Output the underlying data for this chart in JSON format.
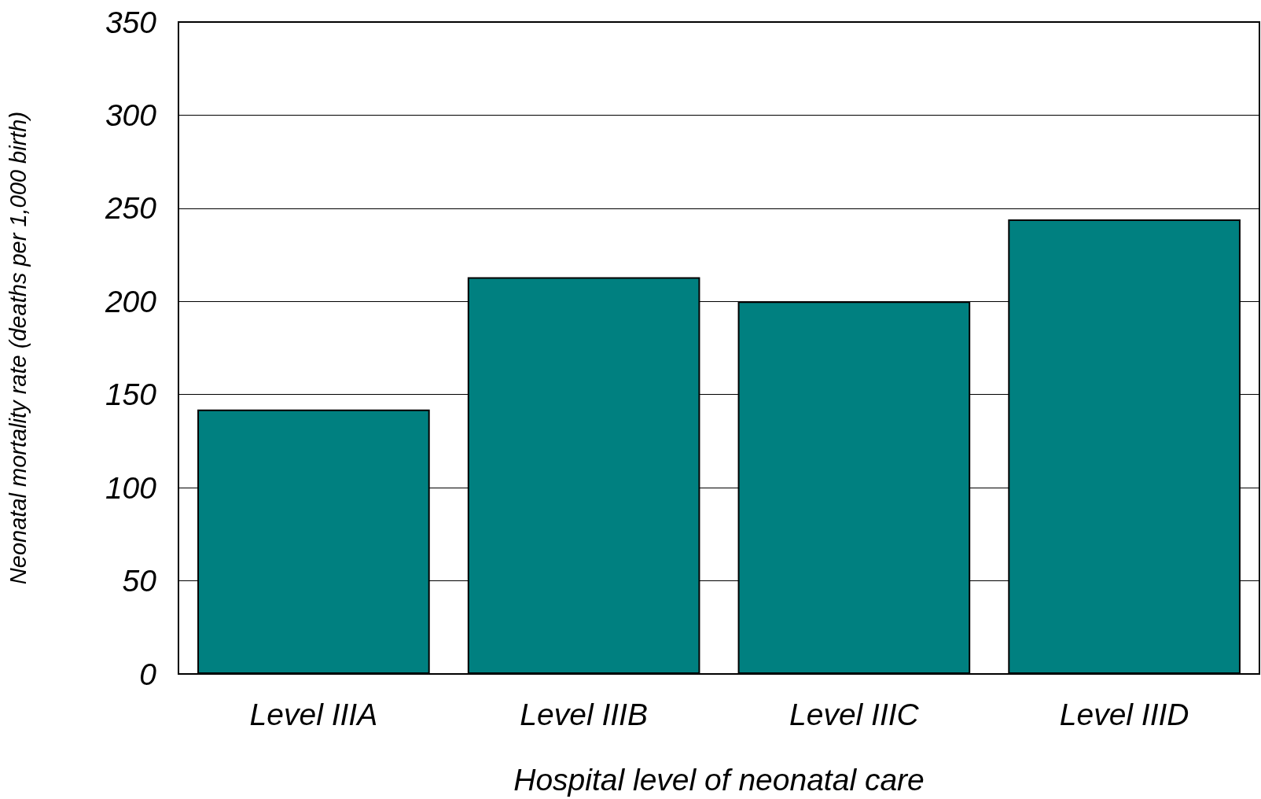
{
  "chart_data": {
    "type": "bar",
    "xlabel": "Hospital level of neonatal care",
    "ylabel": "Neonatal mortality rate (deaths per 1,000 birth)",
    "categories": [
      "Level IIIA",
      "Level IIIB",
      "Level IIIC",
      "Level IIID"
    ],
    "values": [
      142,
      213,
      200,
      244
    ],
    "color": "#008080",
    "ylim": [
      0,
      350
    ],
    "yticks": [
      0,
      50,
      100,
      150,
      200,
      250,
      300,
      350
    ],
    "grid": true
  }
}
